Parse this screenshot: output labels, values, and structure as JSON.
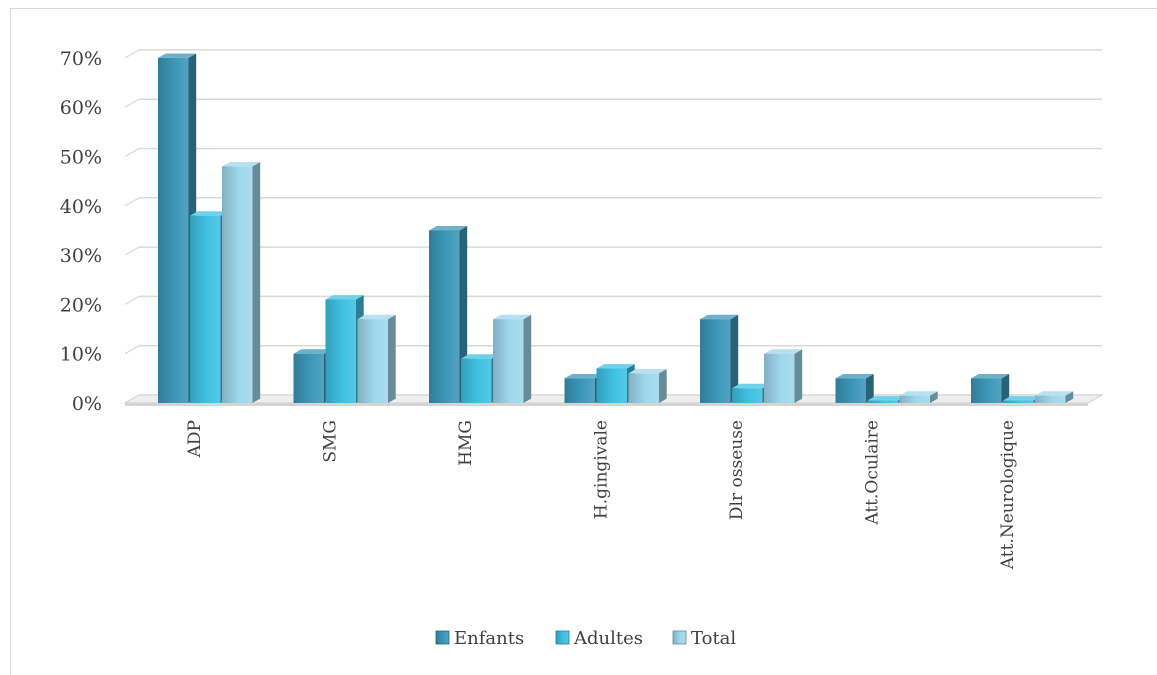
{
  "chart_data": {
    "type": "bar",
    "title": "",
    "xlabel": "",
    "ylabel": "",
    "ylim": [
      0,
      70
    ],
    "yticks": [
      "0%",
      "10%",
      "20%",
      "30%",
      "40%",
      "50%",
      "60%",
      "70%"
    ],
    "categories": [
      "ADP",
      "SMG",
      "HMG",
      "H.gingivale",
      "Dlr osseuse",
      "Att.Oculaire",
      "Att.Neurologique"
    ],
    "series": [
      {
        "name": "Enfants",
        "values": [
          70,
          10,
          35,
          5,
          17,
          5,
          5
        ]
      },
      {
        "name": "Adultes",
        "values": [
          38,
          21,
          9,
          7,
          3,
          0.5,
          0.5
        ]
      },
      {
        "name": "Total",
        "values": [
          48,
          17,
          17,
          6,
          10,
          1.5,
          1.5
        ]
      }
    ],
    "grid": true,
    "legend_position": "bottom",
    "style": "3d-clustered-column",
    "colors": {
      "Enfants": "#3c97b8",
      "Adultes": "#3fc1e3",
      "Total": "#9fd7ec"
    }
  }
}
